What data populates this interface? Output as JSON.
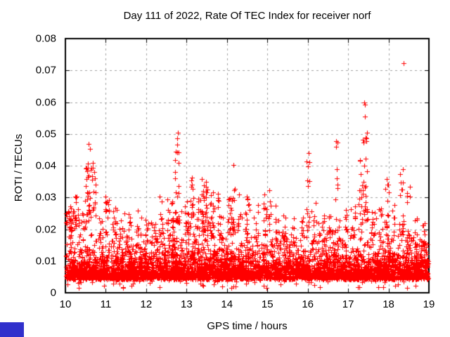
{
  "chart_data": {
    "type": "scatter",
    "title": "Day 111 of 2022, Rate Of TEC Index for receiver norf",
    "xlabel": "GPS time / hours",
    "ylabel": "ROTI / TECUs",
    "xlim": [
      10,
      19
    ],
    "ylim": [
      0,
      0.08
    ],
    "x_ticks": [
      10,
      11,
      12,
      13,
      14,
      15,
      16,
      17,
      18,
      19
    ],
    "x_tick_labels": [
      "10",
      "11",
      "12",
      "13",
      "14",
      "15",
      "16",
      "17",
      "18",
      "19"
    ],
    "y_ticks": [
      0,
      0.01,
      0.02,
      0.03,
      0.04,
      0.05,
      0.06,
      0.07,
      0.08
    ],
    "y_tick_labels": [
      "0",
      "0.01",
      "0.02",
      "0.03",
      "0.04",
      "0.05",
      "0.06",
      "0.07",
      "0.08"
    ],
    "grid": true,
    "legend_position": "none",
    "series_name": "ROTI",
    "marker": {
      "shape": "plus",
      "color": "#ff0000",
      "size": 7,
      "stroke_width": 1
    },
    "axis_color": "#000000",
    "grid_color": "#a0a0a0",
    "summary": "Dense scatter of rate-of-TEC-index values, bulk band 0.004-0.02 TECUs across 10-19 h GPS time, with intermittent spike clusters up to 0.03-0.06 and a maximum outlier of about 0.072 at 18.4 h",
    "points_model": {
      "seed": 111,
      "baseline_layers": [
        {
          "n": 3600,
          "y0": 0.0042,
          "scale": 0.0034,
          "cap": 0.019
        },
        {
          "n": 1150,
          "y0": 0.005,
          "scale": 0.006,
          "cap": 0.0265
        }
      ],
      "sparse_low": {
        "n": 70,
        "y0": 0.0015,
        "y1": 0.0042
      },
      "t_min": 10.02,
      "t_max": 18.98,
      "clusters": [
        [
          10.12,
          0.1,
          28,
          0.019,
          0.0285
        ],
        [
          10.28,
          0.06,
          16,
          0.019,
          0.033
        ],
        [
          10.45,
          0.05,
          10,
          0.02,
          0.03
        ],
        [
          10.57,
          0.07,
          26,
          0.022,
          0.0455
        ],
        [
          10.7,
          0.05,
          14,
          0.024,
          0.04
        ],
        [
          10.85,
          0.04,
          6,
          0.018,
          0.024
        ],
        [
          11.05,
          0.06,
          14,
          0.018,
          0.0305
        ],
        [
          11.22,
          0.05,
          10,
          0.018,
          0.028
        ],
        [
          11.4,
          0.04,
          6,
          0.016,
          0.0235
        ],
        [
          11.58,
          0.04,
          7,
          0.016,
          0.025
        ],
        [
          11.8,
          0.04,
          5,
          0.015,
          0.022
        ],
        [
          12.02,
          0.05,
          7,
          0.016,
          0.0245
        ],
        [
          12.22,
          0.04,
          6,
          0.016,
          0.023
        ],
        [
          12.38,
          0.05,
          9,
          0.018,
          0.0335
        ],
        [
          12.6,
          0.08,
          20,
          0.018,
          0.03
        ],
        [
          12.76,
          0.06,
          22,
          0.022,
          0.0455
        ],
        [
          13.0,
          0.05,
          12,
          0.018,
          0.03
        ],
        [
          13.12,
          0.05,
          14,
          0.02,
          0.0355
        ],
        [
          13.3,
          0.05,
          12,
          0.018,
          0.031
        ],
        [
          13.45,
          0.08,
          38,
          0.018,
          0.0375
        ],
        [
          13.62,
          0.05,
          14,
          0.018,
          0.0325
        ],
        [
          13.82,
          0.05,
          12,
          0.018,
          0.0335
        ],
        [
          14.05,
          0.05,
          12,
          0.018,
          0.03
        ],
        [
          14.15,
          0.05,
          16,
          0.02,
          0.0395
        ],
        [
          14.3,
          0.04,
          10,
          0.018,
          0.035
        ],
        [
          14.5,
          0.05,
          12,
          0.016,
          0.0305
        ],
        [
          14.72,
          0.05,
          9,
          0.016,
          0.028
        ],
        [
          14.95,
          0.05,
          12,
          0.018,
          0.0315
        ],
        [
          15.05,
          0.04,
          8,
          0.018,
          0.035
        ],
        [
          15.22,
          0.04,
          8,
          0.016,
          0.028
        ],
        [
          15.42,
          0.05,
          10,
          0.016,
          0.031
        ],
        [
          15.65,
          0.04,
          6,
          0.015,
          0.0245
        ],
        [
          15.85,
          0.04,
          6,
          0.015,
          0.024
        ],
        [
          16.02,
          0.05,
          12,
          0.018,
          0.0435
        ],
        [
          16.18,
          0.04,
          8,
          0.016,
          0.03
        ],
        [
          16.4,
          0.04,
          7,
          0.015,
          0.025
        ],
        [
          16.55,
          0.05,
          9,
          0.016,
          0.0265
        ],
        [
          16.72,
          0.04,
          8,
          0.018,
          0.0465
        ],
        [
          16.95,
          0.04,
          7,
          0.015,
          0.027
        ],
        [
          17.15,
          0.04,
          8,
          0.016,
          0.029
        ],
        [
          17.3,
          0.05,
          14,
          0.02,
          0.042
        ],
        [
          17.42,
          0.06,
          24,
          0.022,
          0.054
        ],
        [
          17.62,
          0.04,
          8,
          0.016,
          0.03
        ],
        [
          17.8,
          0.04,
          8,
          0.016,
          0.028
        ],
        [
          17.95,
          0.05,
          12,
          0.018,
          0.036
        ],
        [
          18.12,
          0.04,
          8,
          0.016,
          0.028
        ],
        [
          18.32,
          0.06,
          16,
          0.018,
          0.0385
        ],
        [
          18.5,
          0.05,
          12,
          0.016,
          0.0335
        ],
        [
          18.68,
          0.04,
          7,
          0.014,
          0.024
        ],
        [
          18.88,
          0.04,
          8,
          0.013,
          0.0225
        ]
      ],
      "outliers": [
        [
          18.38,
          0.0723
        ],
        [
          17.4,
          0.06
        ],
        [
          17.42,
          0.0592
        ],
        [
          17.41,
          0.0555
        ],
        [
          12.79,
          0.0504
        ],
        [
          12.76,
          0.0487
        ],
        [
          12.77,
          0.0467
        ],
        [
          10.58,
          0.0468
        ],
        [
          10.61,
          0.0452
        ],
        [
          16.7,
          0.0478
        ],
        [
          16.73,
          0.0472
        ],
        [
          16.03,
          0.044
        ],
        [
          17.3,
          0.0418
        ],
        [
          14.16,
          0.0402
        ],
        [
          10.68,
          0.0408
        ],
        [
          17.95,
          0.0358
        ],
        [
          13.13,
          0.0362
        ],
        [
          18.36,
          0.0388
        ]
      ]
    }
  },
  "decor": {
    "corner_mark_color": "#3030cc"
  }
}
